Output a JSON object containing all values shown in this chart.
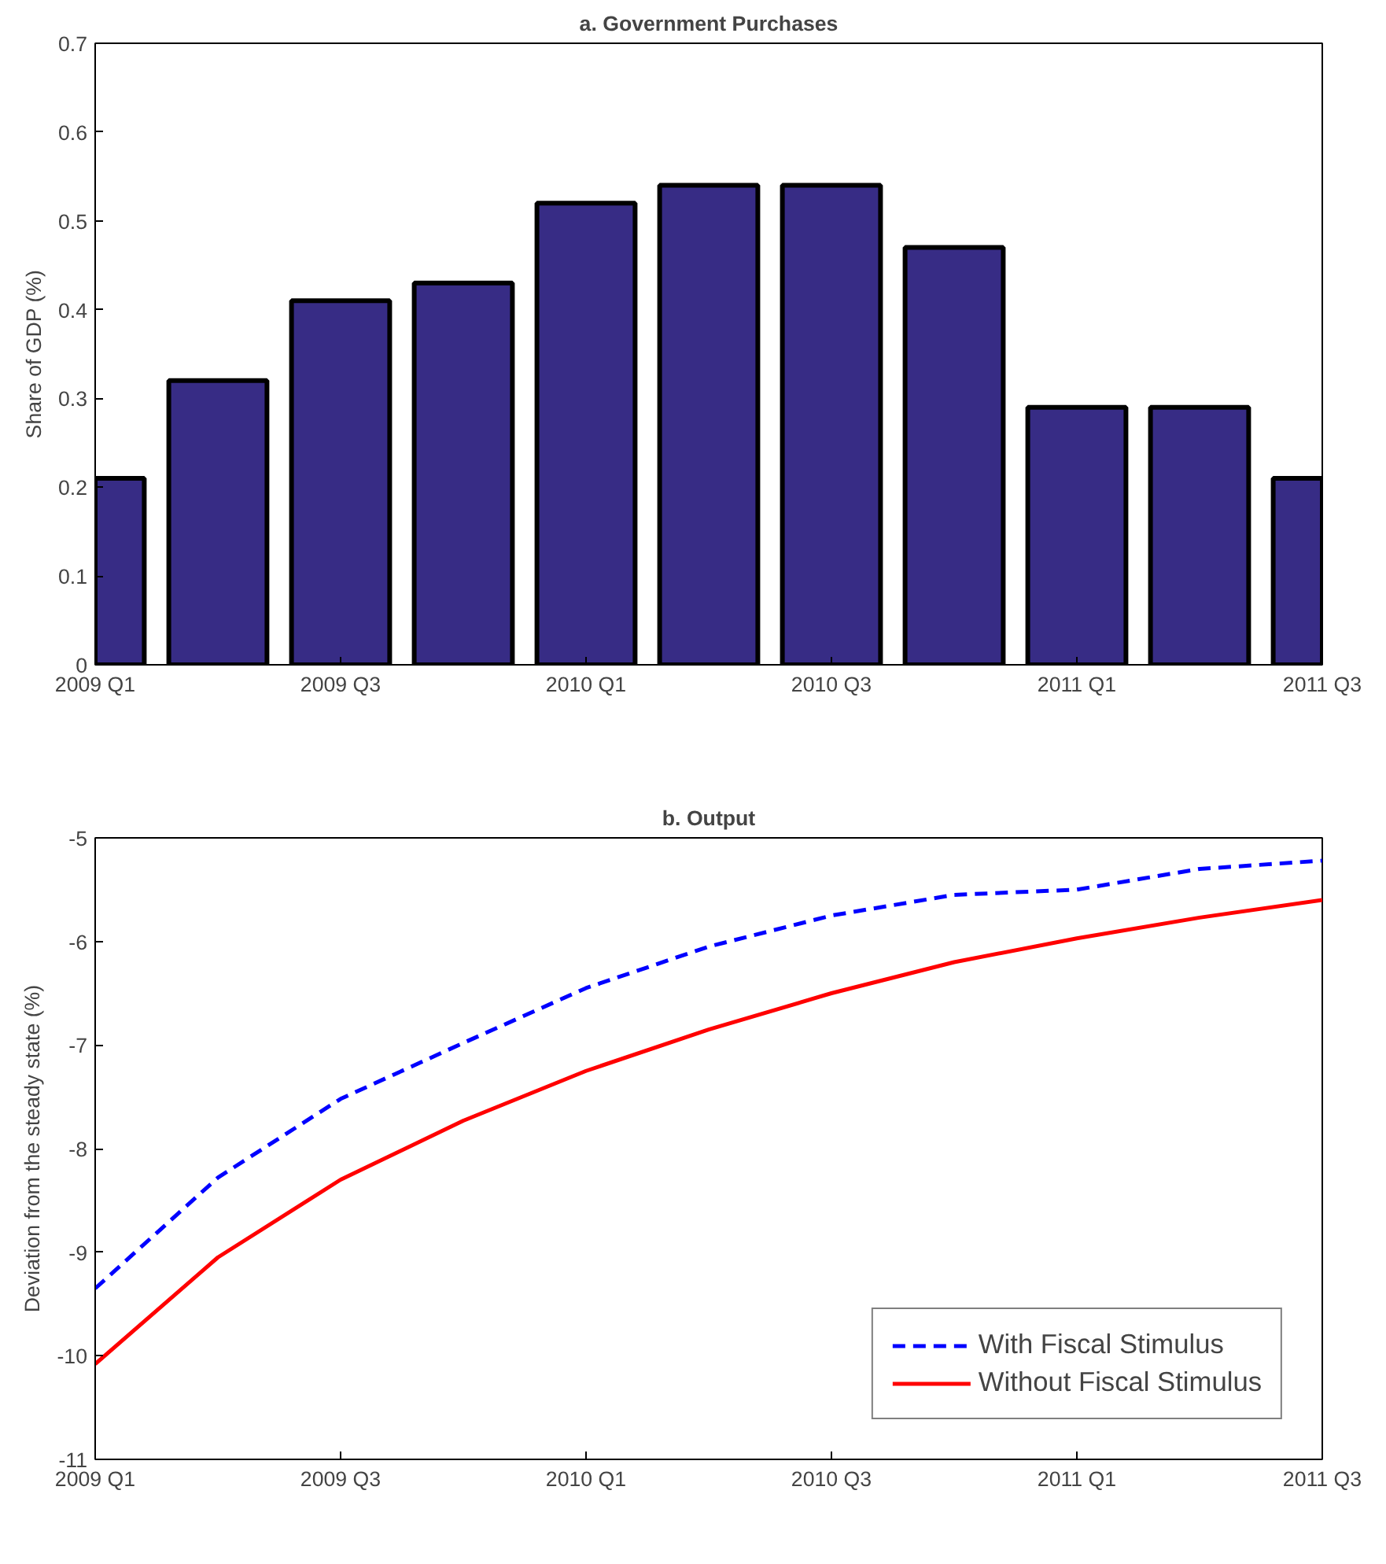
{
  "chart_data": [
    {
      "type": "bar",
      "title": "a. Government Purchases",
      "ylabel": "Share of GDP (%)",
      "categories": [
        "2009 Q1",
        null,
        "2009 Q3",
        null,
        "2010 Q1",
        null,
        "2010 Q3",
        null,
        "2011 Q1",
        null,
        "2011 Q3"
      ],
      "values": [
        0.21,
        0.32,
        0.41,
        0.43,
        0.52,
        0.54,
        0.54,
        0.47,
        0.29,
        0.29,
        0.21
      ],
      "color": "#372c85",
      "ylim": [
        0,
        0.7
      ],
      "yticks": [
        0,
        0.1,
        0.2,
        0.3,
        0.4,
        0.5,
        0.6,
        0.7
      ],
      "grid": false
    },
    {
      "type": "line",
      "title": "b. Output",
      "ylabel": "Deviation from the steady state (%)",
      "categories": [
        "2009 Q1",
        null,
        "2009 Q3",
        null,
        "2010 Q1",
        null,
        "2010 Q3",
        null,
        "2011 Q1",
        null,
        "2011 Q3"
      ],
      "series": [
        {
          "name": "With Fiscal Stimulus",
          "color": "#0000ff",
          "line_style": "dashed",
          "values": [
            -9.35,
            -8.28,
            -7.52,
            -6.98,
            -6.45,
            -6.05,
            -5.75,
            -5.55,
            -5.5,
            -5.3,
            -5.22
          ]
        },
        {
          "name": "Without Fiscal Stimulus",
          "color": "#ff0000",
          "line_style": "solid",
          "values": [
            -10.08,
            -9.05,
            -8.3,
            -7.73,
            -7.25,
            -6.85,
            -6.5,
            -6.2,
            -5.97,
            -5.77,
            -5.6
          ]
        }
      ],
      "ylim": [
        -11,
        -5
      ],
      "yticks": [
        -11,
        -10,
        -9,
        -8,
        -7,
        -6,
        -5
      ],
      "grid": false,
      "legend": "bottom right"
    }
  ]
}
